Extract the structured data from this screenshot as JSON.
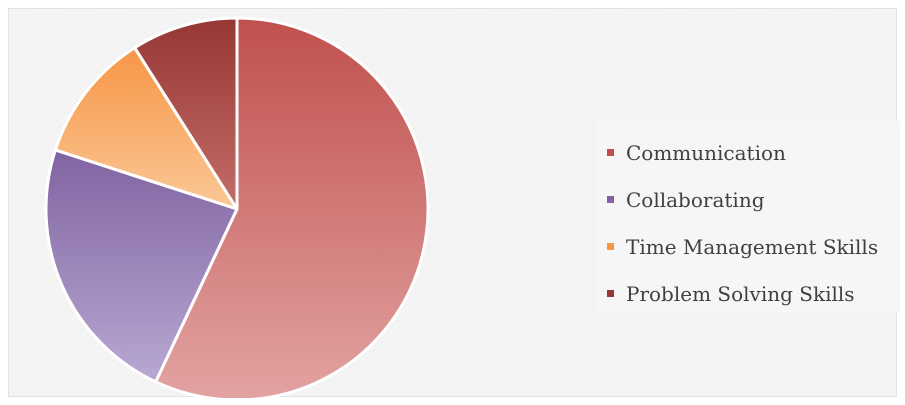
{
  "chart_data": {
    "type": "pie",
    "title": "",
    "legend_position": "right",
    "categories": [
      "Communication",
      "Collaborating",
      "Time Management Skills",
      "Problem Solving Skills"
    ],
    "values": [
      57,
      23,
      11,
      9
    ],
    "colors": [
      "#c0504d",
      "#8064a2",
      "#f79646",
      "#953735"
    ],
    "colors_light": [
      "#e2a3a2",
      "#b9a8d2",
      "#fbc896",
      "#c46d69"
    ]
  }
}
